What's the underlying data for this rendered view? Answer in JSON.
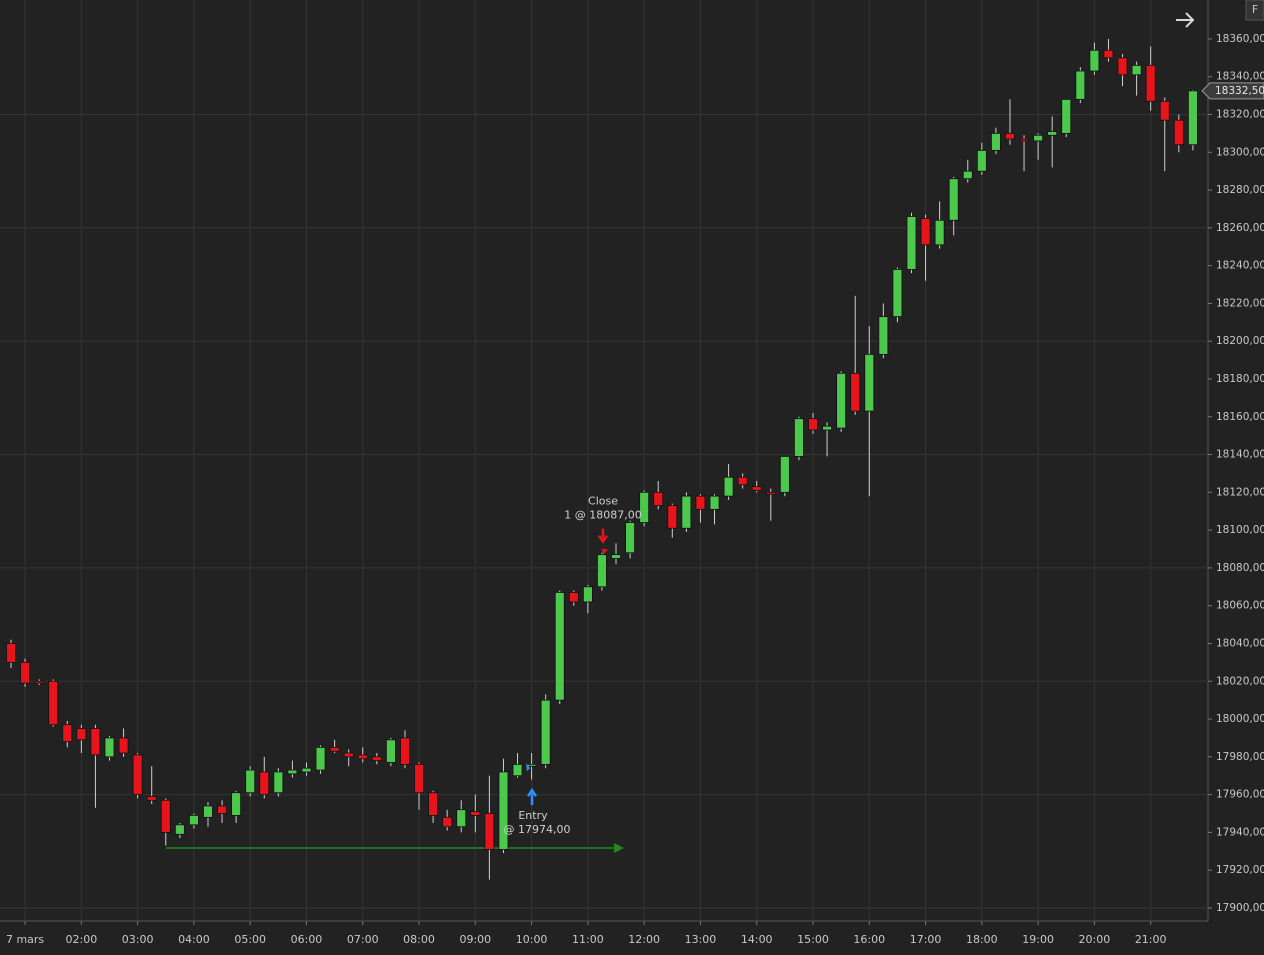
{
  "chart_data": {
    "type": "candlestick",
    "categories": [
      null,
      "7 mars",
      null,
      null,
      null,
      "02:00",
      null,
      null,
      null,
      "03:00",
      null,
      null,
      null,
      "04:00",
      null,
      null,
      null,
      "05:00",
      null,
      null,
      null,
      "06:00",
      null,
      null,
      null,
      "07:00",
      null,
      null,
      null,
      "08:00",
      null,
      null,
      null,
      "09:00",
      null,
      null,
      null,
      "10:00",
      null,
      null,
      null,
      "11:00",
      null,
      null,
      null,
      "12:00",
      null,
      null,
      null,
      "13:00",
      null,
      null,
      null,
      "14:00",
      null,
      null,
      null,
      "15:00",
      null,
      null,
      null,
      "16:00",
      null,
      null,
      null,
      "17:00",
      null,
      null,
      null,
      "18:00",
      null,
      null,
      null,
      "19:00",
      null,
      null,
      null,
      "20:00",
      null,
      null,
      null,
      "21:00",
      null,
      null,
      null
    ],
    "open": [
      18040,
      18030,
      18020,
      18020,
      17997,
      17995,
      17995,
      17980,
      17990,
      17981,
      17959,
      17957,
      17939,
      17944,
      17948,
      17954,
      17949,
      17961,
      17972,
      17961,
      17971,
      17972,
      17973,
      17985,
      17982,
      17981,
      17980,
      17977,
      17990,
      17976,
      17961,
      17948,
      17943,
      17951,
      17950,
      17931,
      17970,
      17975,
      17976,
      18010,
      18067,
      18062,
      18070,
      18085,
      18088,
      18104,
      18120,
      18113,
      18101,
      18118,
      18111,
      18118,
      18128,
      18123,
      18120,
      18120,
      18139,
      18159,
      18153,
      18154,
      18183,
      18163,
      18193,
      18213,
      18238,
      18265,
      18251,
      18264,
      18286,
      18290,
      18301,
      18310,
      18307,
      18306,
      18309,
      18310,
      18328,
      18343,
      18354,
      18350,
      18341,
      18346,
      18327,
      18317,
      18304
    ],
    "high": [
      18042,
      18032,
      18021,
      18021,
      17999,
      17997,
      17997,
      17991,
      17995,
      17982,
      17975,
      17958,
      17945,
      17950,
      17956,
      17957,
      17962,
      17975,
      17980,
      17974,
      17978,
      17977,
      17986,
      17989,
      17984,
      17985,
      17982,
      17990,
      17994,
      17977,
      17962,
      17952,
      17957,
      17960,
      17970,
      17979,
      17982,
      17982,
      18013,
      18068,
      18068,
      18071,
      18088,
      18093,
      18105,
      18121,
      18126,
      18114,
      18120,
      18119,
      18119,
      18135,
      18130,
      18126,
      18122,
      18139,
      18160,
      18162,
      18157,
      18184,
      18224,
      18208,
      18220,
      18239,
      18268,
      18267,
      18274,
      18287,
      18296,
      18305,
      18313,
      18328,
      18309,
      18310,
      18319,
      18328,
      18345,
      18358,
      18360,
      18352,
      18348,
      18356,
      18329,
      18320,
      18333
    ],
    "low": [
      18027,
      18017,
      18018,
      17996,
      17985,
      17982,
      17953,
      17978,
      17980,
      17958,
      17955,
      17933,
      17937,
      17942,
      17943,
      17945,
      17945,
      17959,
      17958,
      17959,
      17969,
      17970,
      17971,
      17982,
      17975,
      17977,
      17976,
      17975,
      17974,
      17952,
      17945,
      17941,
      17940,
      17940,
      17915,
      17929,
      17969,
      17968,
      17974,
      18008,
      18060,
      18056,
      18068,
      18082,
      18085,
      18102,
      18111,
      18096,
      18099,
      18104,
      18103,
      18116,
      18122,
      18120,
      18105,
      18118,
      18137,
      18151,
      18139,
      18152,
      18161,
      18118,
      18191,
      18210,
      18236,
      18232,
      18249,
      18256,
      18284,
      18288,
      18299,
      18304,
      18290,
      18296,
      18292,
      18308,
      18326,
      18341,
      18348,
      18335,
      18330,
      18322,
      18290,
      18300,
      18301
    ],
    "close": [
      18030,
      18019,
      18019,
      17997,
      17988,
      17989,
      17981,
      17990,
      17982,
      17960,
      17957,
      17940,
      17944,
      17949,
      17954,
      17950,
      17961,
      17973,
      17960,
      17972,
      17973,
      17974,
      17985,
      17983,
      17980,
      17979,
      17978,
      17989,
      17976,
      17961,
      17949,
      17943,
      17952,
      17949,
      17931,
      17972,
      17976,
      17976,
      18010,
      18067,
      18062,
      18070,
      18087,
      18087,
      18104,
      18120,
      18113,
      18101,
      18118,
      18111,
      18118,
      18128,
      18124,
      18121,
      18119,
      18139,
      18159,
      18153,
      18155,
      18183,
      18163,
      18193,
      18213,
      18238,
      18266,
      18251,
      18264,
      18286,
      18290,
      18301,
      18310,
      18307,
      18306,
      18309,
      18311,
      18328,
      18343,
      18354,
      18350,
      18341,
      18346,
      18327,
      18317,
      18304,
      18332.5
    ],
    "up_color": "#4cc84c",
    "down_color": "#e8141c",
    "ylim": [
      17893.1,
      18380.6
    ],
    "yticks": [
      {
        "value": 17900,
        "label": "17900,00"
      },
      {
        "value": 17920,
        "label": "17920,00"
      },
      {
        "value": 17940,
        "label": "17940,00"
      },
      {
        "value": 17960,
        "label": "17960,00"
      },
      {
        "value": 17980,
        "label": "17980,00"
      },
      {
        "value": 18000,
        "label": "18000,00"
      },
      {
        "value": 18020,
        "label": "18020,00"
      },
      {
        "value": 18040,
        "label": "18040,00"
      },
      {
        "value": 18060,
        "label": "18060,00"
      },
      {
        "value": 18080,
        "label": "18080,00"
      },
      {
        "value": 18100,
        "label": "18100,00"
      },
      {
        "value": 18120,
        "label": "18120,00"
      },
      {
        "value": 18140,
        "label": "18140,00"
      },
      {
        "value": 18160,
        "label": "18160,00"
      },
      {
        "value": 18180,
        "label": "18180,00"
      },
      {
        "value": 18200,
        "label": "18200,00"
      },
      {
        "value": 18220,
        "label": "18220,00"
      },
      {
        "value": 18240,
        "label": "18240,00"
      },
      {
        "value": 18260,
        "label": "18260,00"
      },
      {
        "value": 18280,
        "label": "18280,00"
      },
      {
        "value": 18300,
        "label": "18300,00"
      },
      {
        "value": 18320,
        "label": "18320,00"
      },
      {
        "value": 18340,
        "label": "18340,00"
      },
      {
        "value": 18360,
        "label": "18360,00"
      }
    ],
    "last_price": {
      "value": 18332.5,
      "label": "18332,50"
    },
    "annotations": [
      {
        "kind": "exit",
        "title": "Close",
        "label": "1 @ 18087,00",
        "value": 18087,
        "color": "#e8141c"
      },
      {
        "kind": "entry",
        "title": "Entry",
        "label": "@ 17974,00",
        "value": 17974,
        "color": "#2f8fff"
      }
    ],
    "grid": true
  },
  "toolbar": {
    "button": "F"
  }
}
